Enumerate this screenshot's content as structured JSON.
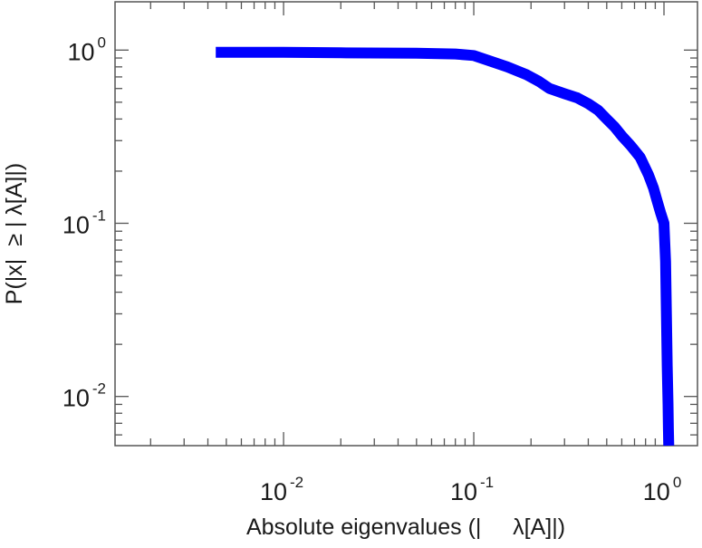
{
  "chart_data": {
    "type": "line",
    "xlabel": "Absolute eigenvalues (|     λ[A]|)",
    "ylabel": "P(|x|  ≥ | λ[A]|)",
    "x_scale": "log",
    "y_scale": "log",
    "xlim": [
      0.0013,
      1.5
    ],
    "ylim": [
      0.0052,
      1.9
    ],
    "grid": false,
    "series_color": "#0000ff",
    "x_ticks": [
      {
        "value": 0.01,
        "base": "10",
        "exp": "-2"
      },
      {
        "value": 0.1,
        "base": "10",
        "exp": "-1"
      },
      {
        "value": 1,
        "base": "10",
        "exp": "0"
      }
    ],
    "y_ticks": [
      {
        "value": 0.01,
        "base": "10",
        "exp": "-2"
      },
      {
        "value": 0.1,
        "base": "10",
        "exp": "-1"
      },
      {
        "value": 1,
        "base": "10",
        "exp": "0"
      }
    ],
    "series": [
      {
        "x": [
          0.0044,
          0.01,
          0.02,
          0.05,
          0.08,
          0.1,
          0.12,
          0.15,
          0.19,
          0.22,
          0.25,
          0.3,
          0.35,
          0.4,
          0.45,
          0.5,
          0.55,
          0.6,
          0.67,
          0.75,
          0.83,
          0.88,
          0.92,
          0.96,
          1.0,
          1.02,
          1.03,
          1.04,
          1.05,
          1.055,
          1.06
        ],
        "y": [
          0.97,
          0.97,
          0.965,
          0.96,
          0.95,
          0.93,
          0.87,
          0.8,
          0.72,
          0.66,
          0.6,
          0.56,
          0.53,
          0.49,
          0.45,
          0.4,
          0.36,
          0.32,
          0.28,
          0.24,
          0.19,
          0.16,
          0.135,
          0.115,
          0.1,
          0.06,
          0.03,
          0.015,
          0.009,
          0.0065,
          0.0052
        ]
      }
    ]
  }
}
